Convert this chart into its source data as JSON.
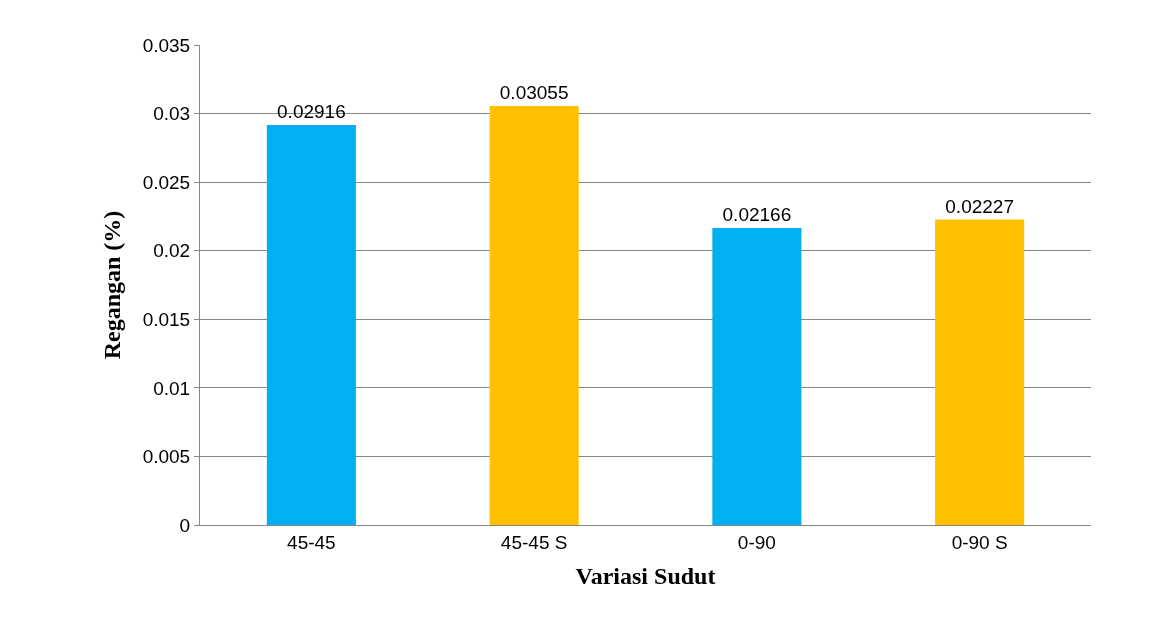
{
  "chart_data": {
    "type": "bar",
    "xlabel": "Variasi Sudut",
    "ylabel": "Regangan (%)",
    "categories": [
      "45-45",
      "45-45 S",
      "0-90",
      "0-90 S"
    ],
    "values": [
      0.02916,
      0.03055,
      0.02166,
      0.02227
    ],
    "colors": [
      "#00b0f0",
      "#ffc000",
      "#00b0f0",
      "#ffc000"
    ],
    "ylim": [
      0,
      0.035
    ],
    "yticks": [
      0,
      0.005,
      0.01,
      0.015,
      0.02,
      0.025,
      0.03,
      0.035
    ],
    "grid": "y",
    "data_labels": true
  }
}
